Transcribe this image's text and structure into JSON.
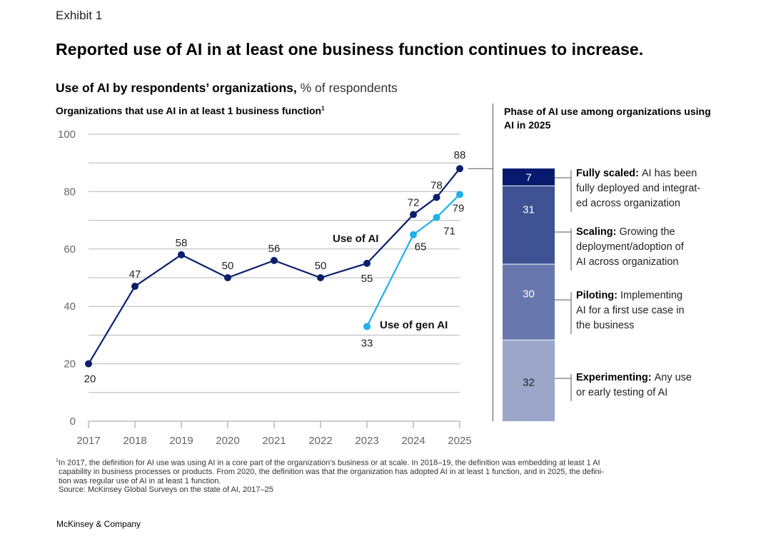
{
  "exhibit_label": "Exhibit 1",
  "title": "Reported use of AI in at least one business function continues to increase.",
  "subtitle": {
    "bold": "Use of AI by respondents’ organizations,",
    "unit": " % of respondents"
  },
  "left_panel": {
    "heading": "Organizations that use AI in at least 1 business function",
    "footnote_marker": "1"
  },
  "right_panel": {
    "heading": "Phase of AI use among organizations using AI in 2025"
  },
  "colors": {
    "use_of_ai": "#0b1f6b",
    "use_of_gen_ai": "#1eb1ec",
    "fully_scaled": "#061b6e",
    "scaling": "#3f5293",
    "piloting": "#6877ad",
    "experimenting": "#9ba6c9",
    "gridline": "#b5b5b5"
  },
  "chart_data": [
    {
      "type": "line",
      "title": "Organizations that use AI in at least 1 business function",
      "xlabel": "",
      "ylabel": "% of respondents",
      "ylim": [
        0,
        100
      ],
      "yticks": [
        0,
        20,
        40,
        60,
        80,
        100
      ],
      "xticks": [
        "2017",
        "2018",
        "2019",
        "2020",
        "2021",
        "2022",
        "2023",
        "2024",
        "2025"
      ],
      "grid": true,
      "series": [
        {
          "name": "Use of AI",
          "label": "Use of AI",
          "points": [
            {
              "x": 2017,
              "y": 20
            },
            {
              "x": 2018,
              "y": 47
            },
            {
              "x": 2019,
              "y": 58
            },
            {
              "x": 2020,
              "y": 50
            },
            {
              "x": 2021,
              "y": 56
            },
            {
              "x": 2022,
              "y": 50
            },
            {
              "x": 2023,
              "y": 55
            },
            {
              "x": 2024,
              "y": 72
            },
            {
              "x": 2024.5,
              "y": 78
            },
            {
              "x": 2025,
              "y": 88
            }
          ]
        },
        {
          "name": "Use of gen AI",
          "label": "Use of gen AI",
          "points": [
            {
              "x": 2023,
              "y": 33
            },
            {
              "x": 2024,
              "y": 65
            },
            {
              "x": 2024.5,
              "y": 71
            },
            {
              "x": 2025,
              "y": 79
            }
          ]
        }
      ]
    },
    {
      "type": "bar",
      "stacked": true,
      "title": "Phase of AI use among organizations using AI in 2025",
      "categories": [
        "2025"
      ],
      "series": [
        {
          "name": "Fully scaled",
          "values": [
            7
          ],
          "description": "AI has been fully deployed and integrat-ed across organization"
        },
        {
          "name": "Scaling",
          "values": [
            31
          ],
          "description": "Growing the deployment/adoption of AI across organization"
        },
        {
          "name": "Piloting",
          "values": [
            30
          ],
          "description": "Implementing AI for a first use case in the business"
        },
        {
          "name": "Experimenting",
          "values": [
            32
          ],
          "description": "Any use or early testing of AI"
        }
      ]
    }
  ],
  "legend": [
    {
      "label": "Fully scaled:",
      "lines": [
        "AI has been",
        "fully deployed and integrat-",
        "ed across organization"
      ]
    },
    {
      "label": "Scaling:",
      "lines": [
        "Growing the",
        "deployment/adoption of",
        "AI across organization"
      ]
    },
    {
      "label": "Piloting:",
      "lines": [
        "Implementing",
        "AI for a first use case in",
        "the business"
      ]
    },
    {
      "label": "Experimenting:",
      "lines": [
        "Any use",
        "or early testing of AI"
      ]
    }
  ],
  "footnote": {
    "marker": "1",
    "lines": [
      "In 2017, the definition for AI use was using AI in a core part of the organization’s business or at scale. In 2018–19, the definition was embedding at least 1 AI",
      "capability in business processes or products. From 2020, the definition was that the organization has adopted AI in at least 1 function, and in 2025, the defini-",
      "tion was regular use of AI in at least 1 function."
    ],
    "source": "Source: McKinsey Global Surveys on the state of AI, 2017–25"
  },
  "brand": "McKinsey & Company"
}
